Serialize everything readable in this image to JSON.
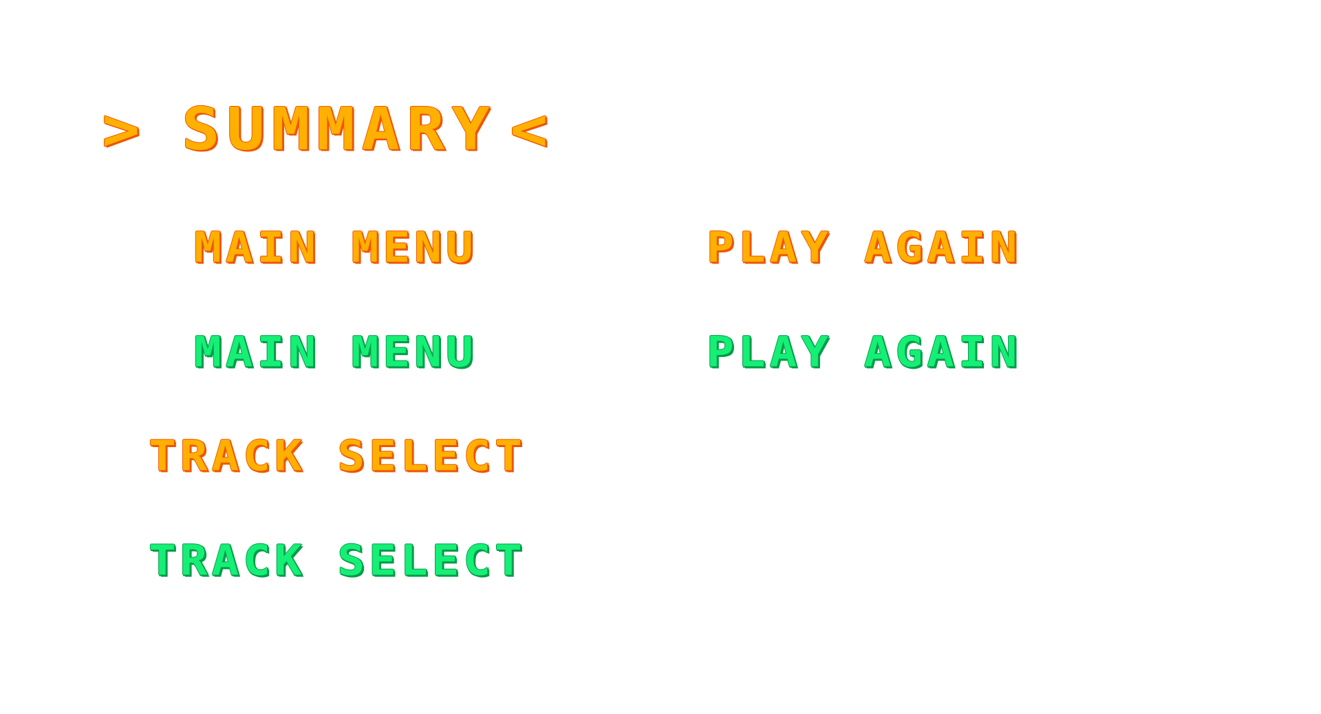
{
  "summary_screen": {
    "title": {
      "left_marker": ">",
      "text": "SUMMARY",
      "right_marker": "<"
    },
    "buttons": {
      "main_menu_normal": "MAIN MENU",
      "main_menu_highlighted": "MAIN MENU",
      "play_again_normal": "PLAY AGAIN",
      "play_again_highlighted": "PLAY AGAIN",
      "track_select_normal": "TRACK SELECT",
      "track_select_highlighted": "TRACK SELECT"
    }
  },
  "colors": {
    "orange_fill": "#ffb000",
    "orange_shadow": "#ef5400",
    "green_fill": "#16ef76",
    "green_shadow": "#009b48",
    "background": "#ffffff"
  }
}
